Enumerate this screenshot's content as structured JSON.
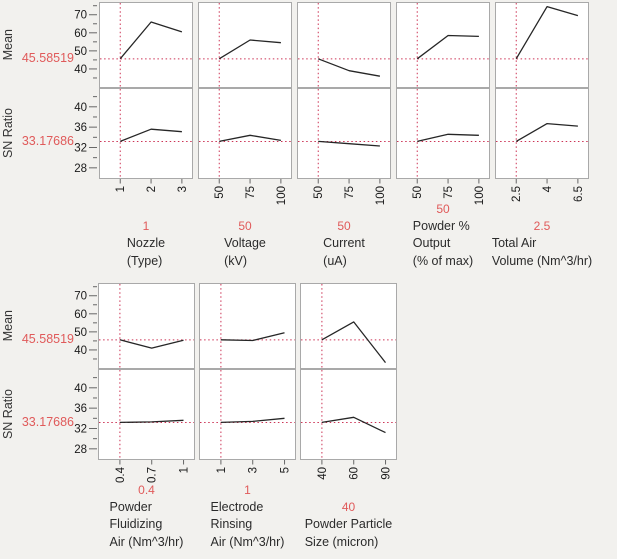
{
  "app": "profiler-plot",
  "colors": {
    "background": "#f2f1ee",
    "panel_background": "#ffffff",
    "panel_border": "#a9a9a9",
    "crosshair_red": "#cc3355",
    "value_red": "#e05a5a",
    "data_line": "#262626",
    "tick_mark": "#666666",
    "tick_label": "#1a1a1a",
    "factor_label": "#2b2b2b"
  },
  "chart_data": {
    "type": "line",
    "description": "Two-response prediction profiler (main effects plot): rows Mean and SN Ratio vs eight 3-level factors; red dotted crosshairs mark current factor settings and predicted response values.",
    "legend_position": "none",
    "grid": false,
    "level_fractions": [
      0.22,
      0.555,
      0.89
    ],
    "crosshair_level_index": 0,
    "responses": [
      {
        "label": "Mean",
        "current_value": "45.58519",
        "ref": 45.58519,
        "ylim": [
          30,
          76.5
        ],
        "major_ticks": [
          70,
          60,
          50,
          40
        ],
        "minor_ticks": [
          75,
          65,
          55,
          45,
          35
        ]
      },
      {
        "label": "SN Ratio",
        "current_value": "33.17686",
        "ref": 33.17686,
        "ylim": [
          26,
          43.5
        ],
        "major_ticks": [
          40,
          36,
          32,
          28
        ],
        "minor_ticks": [
          42,
          38,
          34,
          30
        ]
      }
    ],
    "groups": [
      {
        "factors": [
          {
            "name_lines": [
              "Nozzle",
              "(Type)"
            ],
            "setting": "1",
            "levels": [
              "1",
              "2",
              "3"
            ],
            "series": {
              "mean": [
                45.6,
                66,
                60.5
              ],
              "sn": [
                33.2,
                35.6,
                35.1
              ]
            }
          },
          {
            "name_lines": [
              "Voltage",
              "(kV)"
            ],
            "setting": "50",
            "levels": [
              "50",
              "75",
              "100"
            ],
            "series": {
              "mean": [
                45.6,
                56,
                54.5
              ],
              "sn": [
                33.2,
                34.4,
                33.4
              ]
            }
          },
          {
            "name_lines": [
              "Current",
              "(uA)"
            ],
            "setting": "50",
            "levels": [
              "50",
              "75",
              "100"
            ],
            "series": {
              "mean": [
                45.6,
                39,
                36
              ],
              "sn": [
                33.2,
                32.75,
                32.3
              ]
            }
          },
          {
            "name_lines": [
              "Powder %",
              "Output",
              "(% of max)"
            ],
            "setting": "50",
            "levels": [
              "50",
              "75",
              "100"
            ],
            "series": {
              "mean": [
                45.6,
                58.5,
                58
              ],
              "sn": [
                33.2,
                34.6,
                34.4
              ]
            }
          },
          {
            "name_lines": [
              "Total Air",
              "Volume (Nm^3/hr)"
            ],
            "setting": "2.5",
            "levels": [
              "2.5",
              "4",
              "6.5"
            ],
            "series": {
              "mean": [
                45.6,
                74.5,
                69.5
              ],
              "sn": [
                33.2,
                36.7,
                36.2
              ]
            }
          }
        ]
      },
      {
        "factors": [
          {
            "name_lines": [
              "Powder",
              "Fluidizing",
              "Air (Nm^3/hr)"
            ],
            "setting": "0.4",
            "levels": [
              "0.4",
              "0.7",
              "1"
            ],
            "series": {
              "mean": [
                45.6,
                41,
                45.4
              ],
              "sn": [
                33.2,
                33.3,
                33.6
              ]
            }
          },
          {
            "name_lines": [
              "Electrode",
              "Rinsing",
              "Air (Nm^3/hr)"
            ],
            "setting": "1",
            "levels": [
              "1",
              "3",
              "5"
            ],
            "series": {
              "mean": [
                45.6,
                45.2,
                49.5
              ],
              "sn": [
                33.2,
                33.4,
                34.0
              ]
            }
          },
          {
            "name_lines": [
              "Powder Particle",
              "Size (micron)"
            ],
            "setting": "40",
            "levels": [
              "40",
              "60",
              "90"
            ],
            "series": {
              "mean": [
                45.6,
                55.5,
                33
              ],
              "sn": [
                33.2,
                34.2,
                31.2
              ]
            }
          }
        ]
      }
    ]
  }
}
